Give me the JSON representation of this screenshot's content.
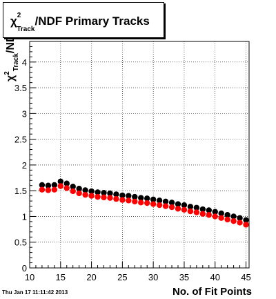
{
  "chart_data": {
    "type": "scatter",
    "title_parts": {
      "chi": "χ",
      "sup": "2",
      "sub": "Track",
      "rest": "/NDF Primary Tracks"
    },
    "ylabel_parts": {
      "chi": "χ",
      "sup": "2",
      "sub": "Track",
      "rest": "/NDF"
    },
    "xlabel": "No. of Fit Points",
    "xlim": [
      10,
      45.5
    ],
    "ylim": [
      0,
      4.4
    ],
    "x_ticks": [
      10,
      15,
      20,
      25,
      30,
      35,
      40,
      45
    ],
    "y_ticks": [
      0,
      0.5,
      1,
      1.5,
      2,
      2.5,
      3,
      3.5,
      4
    ],
    "y_tick_labels": [
      "0",
      "0.5",
      "1",
      "1.5",
      "2",
      "2.5",
      "3",
      "3.5",
      "4"
    ],
    "grid": true,
    "series": [
      {
        "color": "#000000",
        "x": [
          12,
          13,
          14,
          15,
          16,
          17,
          18,
          19,
          20,
          21,
          22,
          23,
          24,
          25,
          26,
          27,
          28,
          29,
          30,
          31,
          32,
          33,
          34,
          35,
          36,
          37,
          38,
          39,
          40,
          41,
          42,
          43,
          44,
          45
        ],
        "values": [
          1.61,
          1.6,
          1.61,
          1.68,
          1.64,
          1.58,
          1.54,
          1.51,
          1.49,
          1.47,
          1.46,
          1.45,
          1.43,
          1.41,
          1.4,
          1.38,
          1.36,
          1.35,
          1.33,
          1.31,
          1.29,
          1.27,
          1.24,
          1.22,
          1.19,
          1.17,
          1.14,
          1.12,
          1.09,
          1.06,
          1.03,
          1.0,
          0.97,
          0.93
        ]
      },
      {
        "color": "#ff0000",
        "x": [
          12,
          13,
          14,
          15,
          16,
          17,
          18,
          19,
          20,
          21,
          22,
          23,
          24,
          25,
          26,
          27,
          28,
          29,
          30,
          31,
          32,
          33,
          34,
          35,
          36,
          37,
          38,
          39,
          40,
          41,
          42,
          43,
          44,
          45
        ],
        "values": [
          1.52,
          1.51,
          1.52,
          1.59,
          1.55,
          1.49,
          1.45,
          1.42,
          1.4,
          1.38,
          1.37,
          1.36,
          1.34,
          1.32,
          1.31,
          1.29,
          1.27,
          1.26,
          1.24,
          1.22,
          1.2,
          1.18,
          1.15,
          1.13,
          1.1,
          1.08,
          1.05,
          1.03,
          1.0,
          0.97,
          0.94,
          0.91,
          0.88,
          0.84
        ]
      }
    ]
  },
  "footer": {
    "timestamp": "Thu Jan 17 11:11:42 2013"
  }
}
